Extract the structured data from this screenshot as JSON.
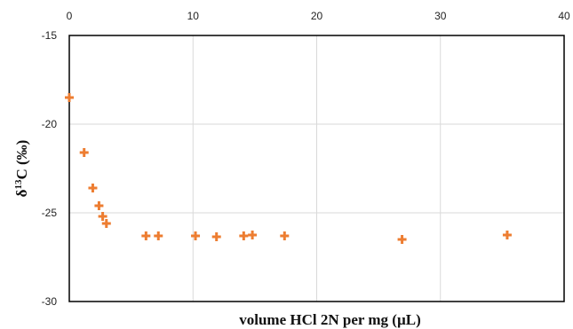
{
  "chart_data": {
    "type": "scatter",
    "xlabel": "volume HCl 2N per mg (µL)",
    "ylabel_parts": {
      "delta": "δ",
      "sup": "13",
      "rest": "C (‰)"
    },
    "xlim": [
      0,
      40
    ],
    "ylim": [
      -30,
      -15
    ],
    "x_ticks": [
      0,
      10,
      20,
      30,
      40
    ],
    "y_ticks": [
      -15,
      -20,
      -25,
      -30
    ],
    "x_axis_position": "top",
    "grid": true,
    "marker": "plus",
    "color": "#ED7D31",
    "points": [
      {
        "x": 0.0,
        "y": -18.5
      },
      {
        "x": 1.2,
        "y": -21.6
      },
      {
        "x": 1.9,
        "y": -23.6
      },
      {
        "x": 2.4,
        "y": -24.6
      },
      {
        "x": 2.7,
        "y": -25.2
      },
      {
        "x": 3.0,
        "y": -25.6
      },
      {
        "x": 6.2,
        "y": -26.3
      },
      {
        "x": 7.2,
        "y": -26.3
      },
      {
        "x": 10.2,
        "y": -26.3
      },
      {
        "x": 11.9,
        "y": -26.35
      },
      {
        "x": 14.1,
        "y": -26.3
      },
      {
        "x": 14.8,
        "y": -26.25
      },
      {
        "x": 17.4,
        "y": -26.3
      },
      {
        "x": 26.9,
        "y": -26.5
      },
      {
        "x": 35.4,
        "y": -26.25
      }
    ]
  }
}
